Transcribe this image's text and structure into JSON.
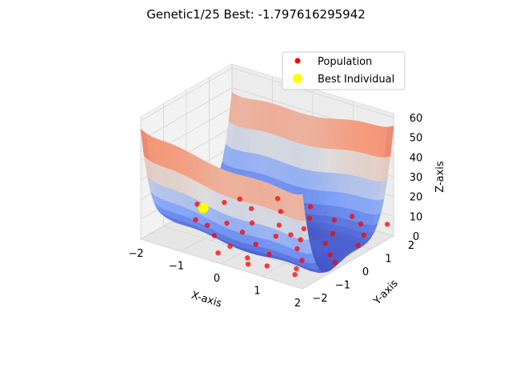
{
  "title": "Genetic1/25 Best: -1.797616295942",
  "chart_data": {
    "type": "scatter",
    "projection": "3d",
    "title": "Genetic1/25 Best: -1.797616295942",
    "xlabel": "X-axis",
    "ylabel": "Y-axis",
    "zlabel": "Z-axis",
    "xlim": [
      -2,
      2
    ],
    "ylim": [
      -2,
      2
    ],
    "zlim": [
      0,
      62
    ],
    "xticks": [
      "−2",
      "−1",
      "0",
      "1",
      "2"
    ],
    "yticks": [
      "−2",
      "−1",
      "0",
      "1",
      "2"
    ],
    "zticks": [
      "0",
      "10",
      "20",
      "30",
      "40",
      "50",
      "60"
    ],
    "surface": {
      "style": "surface",
      "colormap": "coolwarm",
      "x_range": [
        -2,
        2
      ],
      "y_range": [
        -2,
        2
      ],
      "z_range": [
        -1.8,
        62
      ]
    },
    "legend": {
      "position": "upper-right",
      "entries": [
        {
          "label": "Population",
          "color": "#ff0000",
          "marker": "circle"
        },
        {
          "label": "Best Individual",
          "color": "#ffff00",
          "marker": "circle"
        }
      ]
    },
    "series": [
      {
        "name": "Population",
        "color": "#ff0000",
        "points": [
          [
            -1.9,
            0.3,
            3
          ],
          [
            -1.6,
            -0.3,
            1
          ],
          [
            -1.4,
            0.6,
            5
          ],
          [
            -1.2,
            -0.5,
            2
          ],
          [
            -1.3,
            1.1,
            4
          ],
          [
            -1.0,
            0.0,
            1
          ],
          [
            -0.9,
            0.9,
            3
          ],
          [
            -0.8,
            -0.9,
            2
          ],
          [
            -0.6,
            0.4,
            1
          ],
          [
            -0.5,
            -0.2,
            1
          ],
          [
            -0.4,
            1.3,
            2
          ],
          [
            -0.3,
            -1.1,
            1
          ],
          [
            -0.1,
            0.7,
            1
          ],
          [
            0.0,
            -0.5,
            0
          ],
          [
            0.1,
            0.2,
            0
          ],
          [
            0.2,
            1.5,
            1
          ],
          [
            0.3,
            -1.4,
            1
          ],
          [
            0.4,
            0.9,
            1
          ],
          [
            0.5,
            -0.8,
            0
          ],
          [
            0.6,
            0.4,
            0
          ],
          [
            0.7,
            1.7,
            2
          ],
          [
            0.8,
            -0.1,
            0
          ],
          [
            0.9,
            -1.6,
            2
          ],
          [
            1.0,
            1.1,
            1
          ],
          [
            1.1,
            0.6,
            0
          ],
          [
            1.2,
            -0.6,
            0
          ],
          [
            1.3,
            1.8,
            3
          ],
          [
            1.4,
            -1.2,
            1
          ],
          [
            1.5,
            0.1,
            0
          ],
          [
            1.6,
            1.4,
            2
          ],
          [
            1.7,
            -1.8,
            4
          ],
          [
            1.8,
            0.8,
            2
          ],
          [
            1.9,
            -0.4,
            2
          ],
          [
            0.0,
            1.9,
            3
          ],
          [
            -0.2,
            -1.8,
            3
          ],
          [
            0.6,
            -1.9,
            3
          ],
          [
            1.0,
            1.95,
            4
          ],
          [
            1.9,
            1.9,
            6
          ],
          [
            -0.7,
            1.7,
            4
          ],
          [
            0.3,
            0.5,
            0
          ]
        ]
      },
      {
        "name": "Best Individual",
        "color": "#ffff00",
        "points": [
          [
            -1.75,
            0.3,
            2
          ]
        ]
      }
    ]
  }
}
